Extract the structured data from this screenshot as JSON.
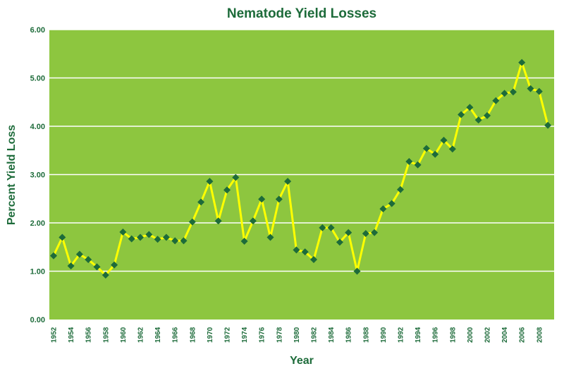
{
  "chart_data": {
    "type": "line",
    "title": "Nematode Yield Losses",
    "xlabel": "Year",
    "ylabel": "Percent Yield Loss",
    "ylim": [
      0,
      6
    ],
    "yticks": [
      "0.00",
      "1.00",
      "2.00",
      "3.00",
      "4.00",
      "5.00",
      "6.00"
    ],
    "xticks": [
      "1952",
      "1954",
      "1956",
      "1958",
      "1960",
      "1962",
      "1964",
      "1966",
      "1968",
      "1970",
      "1972",
      "1974",
      "1976",
      "1978",
      "1980",
      "1982",
      "1984",
      "1986",
      "1988",
      "1990",
      "1992",
      "1994",
      "1996",
      "1998",
      "2000",
      "2002",
      "2004",
      "2006",
      "2008"
    ],
    "grid": true,
    "colors": {
      "plot_bg": "#8dc63f",
      "line": "#ffff00",
      "marker": "#1d6b3a",
      "grid": "#ffffff",
      "text": "#1d6b3a"
    },
    "x": [
      1952,
      1953,
      1954,
      1955,
      1956,
      1957,
      1958,
      1959,
      1960,
      1961,
      1962,
      1963,
      1964,
      1965,
      1966,
      1967,
      1968,
      1969,
      1970,
      1971,
      1972,
      1973,
      1974,
      1975,
      1976,
      1977,
      1978,
      1979,
      1980,
      1981,
      1982,
      1983,
      1984,
      1985,
      1986,
      1987,
      1988,
      1989,
      1990,
      1991,
      1992,
      1993,
      1994,
      1995,
      1996,
      1997,
      1998,
      1999,
      2000,
      2001,
      2002,
      2003,
      2004,
      2005,
      2006,
      2007,
      2008,
      2009
    ],
    "series": [
      {
        "values": [
          1.32,
          1.7,
          1.11,
          1.35,
          1.24,
          1.09,
          0.92,
          1.13,
          1.81,
          1.67,
          1.7,
          1.76,
          1.66,
          1.7,
          1.63,
          1.63,
          2.02,
          2.43,
          2.86,
          2.04,
          2.68,
          2.94,
          1.62,
          2.04,
          2.49,
          1.7,
          2.49,
          2.86,
          1.44,
          1.4,
          1.24,
          1.9,
          1.9,
          1.6,
          1.8,
          1.0,
          1.78,
          1.8,
          2.29,
          2.4,
          2.69,
          3.27,
          3.2,
          3.54,
          3.42,
          3.71,
          3.53,
          4.24,
          4.39,
          4.13,
          4.22,
          4.53,
          4.68,
          4.71,
          5.32,
          4.78,
          4.72,
          4.02
        ]
      }
    ]
  }
}
